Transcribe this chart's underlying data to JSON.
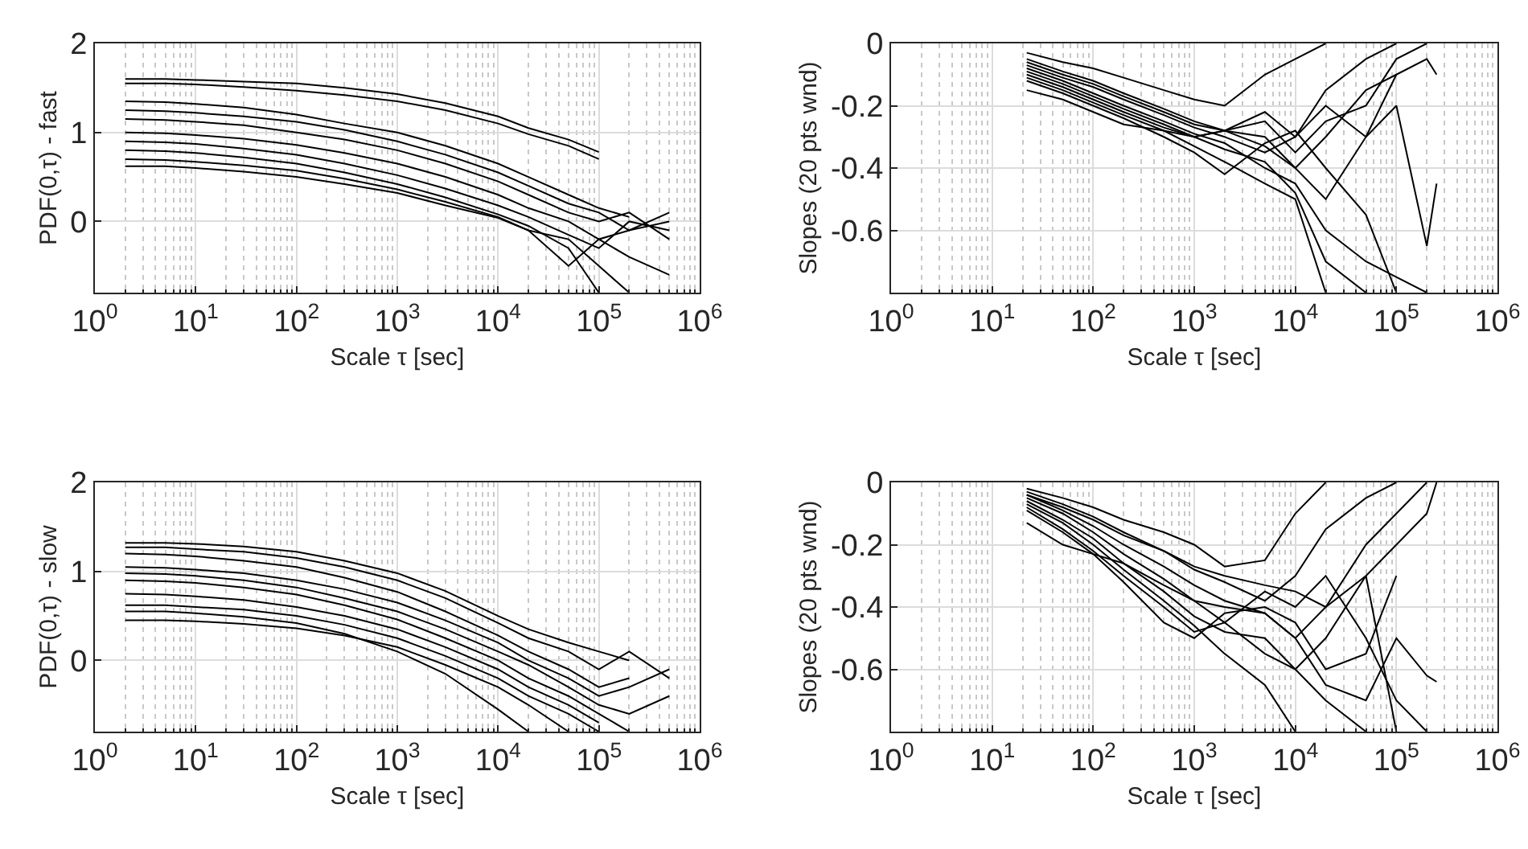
{
  "chart_data": [
    {
      "type": "line",
      "xlabel": "Scale τ [sec]",
      "ylabel": "PDF(0,τ) - fast",
      "log": "x",
      "grid": true,
      "xlim": [
        1,
        1000000
      ],
      "ylim": [
        -0.8,
        2
      ],
      "xticks": [
        {
          "value": 1,
          "label": "10$^{0}$"
        },
        {
          "value": 10,
          "label": "10$^{1}$"
        },
        {
          "value": 100,
          "label": "10$^{2}$"
        },
        {
          "value": 1000,
          "label": "10$^{3}$"
        },
        {
          "value": 10000,
          "label": "10$^{4}$"
        },
        {
          "value": 100000,
          "label": "10$^{5}$"
        },
        {
          "value": 1000000,
          "label": "10$^{6}$"
        }
      ],
      "yticks": [
        0,
        1,
        2
      ],
      "x": [
        2,
        5,
        10,
        30,
        100,
        300,
        1000,
        3000,
        10000,
        20000,
        50000,
        100000,
        200000,
        500000
      ],
      "series": [
        {
          "color": "#000000",
          "values": [
            1.6,
            1.6,
            1.59,
            1.57,
            1.55,
            1.5,
            1.43,
            1.33,
            1.18,
            1.05,
            0.92,
            0.78,
            null,
            null
          ]
        },
        {
          "color": "#000000",
          "values": [
            1.55,
            1.55,
            1.54,
            1.51,
            1.47,
            1.42,
            1.35,
            1.25,
            1.1,
            0.98,
            0.85,
            0.7,
            null,
            null
          ]
        },
        {
          "color": "#000000",
          "values": [
            1.35,
            1.34,
            1.32,
            1.28,
            1.2,
            1.1,
            1.0,
            0.85,
            0.65,
            0.5,
            0.3,
            0.15,
            0.05,
            null
          ]
        },
        {
          "color": "#000000",
          "values": [
            1.25,
            1.24,
            1.22,
            1.18,
            1.12,
            1.03,
            0.9,
            0.75,
            0.55,
            0.4,
            0.2,
            0.1,
            -0.1,
            0.0
          ]
        },
        {
          "color": "#000000",
          "values": [
            1.15,
            1.14,
            1.12,
            1.08,
            1.0,
            0.92,
            0.8,
            0.65,
            0.45,
            0.3,
            0.1,
            0.0,
            0.1,
            -0.2
          ]
        },
        {
          "color": "#000000",
          "values": [
            1.0,
            0.99,
            0.97,
            0.93,
            0.86,
            0.77,
            0.65,
            0.5,
            0.3,
            0.15,
            0.0,
            -0.2,
            -0.1,
            0.1
          ]
        },
        {
          "color": "#000000",
          "values": [
            0.9,
            0.89,
            0.87,
            0.82,
            0.75,
            0.65,
            0.52,
            0.37,
            0.18,
            0.05,
            -0.15,
            -0.3,
            0.0,
            -0.1
          ]
        },
        {
          "color": "#000000",
          "values": [
            0.8,
            0.79,
            0.77,
            0.72,
            0.65,
            0.55,
            0.42,
            0.27,
            0.08,
            -0.05,
            -0.3,
            -0.8,
            null,
            null
          ]
        },
        {
          "color": "#000000",
          "values": [
            0.7,
            0.69,
            0.67,
            0.63,
            0.57,
            0.48,
            0.36,
            0.22,
            0.05,
            -0.1,
            -0.5,
            -0.2,
            -0.4,
            -0.6
          ]
        },
        {
          "color": "#000000",
          "values": [
            0.62,
            0.62,
            0.6,
            0.56,
            0.5,
            0.42,
            0.32,
            0.18,
            0.04,
            -0.1,
            -0.2,
            -0.5,
            -0.8,
            null
          ]
        }
      ]
    },
    {
      "type": "line",
      "xlabel": "Scale τ [sec]",
      "ylabel": "Slopes (20 pts wnd)",
      "log": "x",
      "grid": true,
      "xlim": [
        1,
        1000000
      ],
      "ylim": [
        -0.8,
        0
      ],
      "xticks": [
        {
          "value": 1,
          "label": "10$^{0}$"
        },
        {
          "value": 10,
          "label": "10$^{1}$"
        },
        {
          "value": 100,
          "label": "10$^{2}$"
        },
        {
          "value": 1000,
          "label": "10$^{3}$"
        },
        {
          "value": 10000,
          "label": "10$^{4}$"
        },
        {
          "value": 100000,
          "label": "10$^{5}$"
        },
        {
          "value": 1000000,
          "label": "10$^{6}$"
        }
      ],
      "yticks": [
        -0.6,
        -0.4,
        -0.2,
        0
      ],
      "x": [
        22,
        50,
        100,
        200,
        500,
        1000,
        2000,
        5000,
        10000,
        20000,
        50000,
        100000,
        200000,
        250000
      ],
      "series": [
        {
          "color": "#000000",
          "values": [
            -0.03,
            -0.06,
            -0.08,
            -0.11,
            -0.15,
            -0.18,
            -0.2,
            -0.1,
            -0.05,
            0.0,
            null,
            null,
            null,
            null
          ]
        },
        {
          "color": "#000000",
          "values": [
            -0.05,
            -0.09,
            -0.12,
            -0.16,
            -0.21,
            -0.25,
            -0.28,
            -0.22,
            -0.3,
            -0.15,
            -0.05,
            0.0,
            null,
            null
          ]
        },
        {
          "color": "#000000",
          "values": [
            -0.07,
            -0.11,
            -0.14,
            -0.18,
            -0.23,
            -0.27,
            -0.3,
            -0.35,
            -0.3,
            -0.2,
            -0.3,
            -0.1,
            null,
            null
          ]
        },
        {
          "color": "#000000",
          "values": [
            -0.08,
            -0.12,
            -0.16,
            -0.2,
            -0.25,
            -0.29,
            -0.32,
            -0.4,
            -0.45,
            -0.6,
            -0.7,
            -0.75,
            -0.8,
            null
          ]
        },
        {
          "color": "#000000",
          "values": [
            -0.1,
            -0.14,
            -0.18,
            -0.22,
            -0.27,
            -0.3,
            -0.28,
            -0.25,
            -0.35,
            -0.25,
            -0.2,
            -0.05,
            0.0,
            null
          ]
        },
        {
          "color": "#000000",
          "values": [
            -0.11,
            -0.15,
            -0.19,
            -0.23,
            -0.28,
            -0.33,
            -0.38,
            -0.45,
            -0.5,
            -0.8,
            null,
            null,
            null,
            null
          ]
        },
        {
          "color": "#000000",
          "values": [
            -0.12,
            -0.16,
            -0.2,
            -0.24,
            -0.3,
            -0.35,
            -0.42,
            -0.32,
            -0.28,
            -0.4,
            -0.55,
            -0.8,
            null,
            null
          ]
        },
        {
          "color": "#000000",
          "values": [
            -0.15,
            -0.18,
            -0.22,
            -0.26,
            -0.28,
            -0.3,
            -0.28,
            -0.3,
            -0.4,
            -0.3,
            -0.15,
            -0.1,
            -0.05,
            -0.1
          ]
        },
        {
          "color": "#000000",
          "values": [
            -0.06,
            -0.1,
            -0.13,
            -0.17,
            -0.22,
            -0.26,
            -0.28,
            -0.33,
            -0.4,
            -0.5,
            -0.3,
            -0.2,
            -0.65,
            -0.45
          ]
        },
        {
          "color": "#000000",
          "values": [
            -0.09,
            -0.13,
            -0.17,
            -0.21,
            -0.26,
            -0.3,
            -0.34,
            -0.38,
            -0.48,
            -0.7,
            -0.8,
            null,
            null,
            null
          ]
        }
      ]
    },
    {
      "type": "line",
      "xlabel": "Scale τ [sec]",
      "ylabel": "PDF(0,τ) - slow",
      "log": "x",
      "grid": true,
      "xlim": [
        1,
        1000000
      ],
      "ylim": [
        -0.8,
        2
      ],
      "xticks": [
        {
          "value": 1,
          "label": "10$^{0}$"
        },
        {
          "value": 10,
          "label": "10$^{1}$"
        },
        {
          "value": 100,
          "label": "10$^{2}$"
        },
        {
          "value": 1000,
          "label": "10$^{3}$"
        },
        {
          "value": 10000,
          "label": "10$^{4}$"
        },
        {
          "value": 100000,
          "label": "10$^{5}$"
        },
        {
          "value": 1000000,
          "label": "10$^{6}$"
        }
      ],
      "yticks": [
        0,
        1,
        2
      ],
      "x": [
        2,
        5,
        10,
        30,
        100,
        300,
        1000,
        3000,
        10000,
        20000,
        50000,
        100000,
        200000,
        500000
      ],
      "series": [
        {
          "color": "#000000",
          "values": [
            1.32,
            1.32,
            1.31,
            1.28,
            1.22,
            1.12,
            0.98,
            0.78,
            0.5,
            0.35,
            0.2,
            0.1,
            0.0,
            null
          ]
        },
        {
          "color": "#000000",
          "values": [
            1.27,
            1.27,
            1.25,
            1.22,
            1.15,
            1.05,
            0.9,
            0.7,
            0.42,
            0.25,
            0.1,
            -0.1,
            0.1,
            -0.2
          ]
        },
        {
          "color": "#000000",
          "values": [
            1.2,
            1.19,
            1.17,
            1.12,
            1.05,
            0.93,
            0.77,
            0.55,
            0.28,
            0.1,
            -0.1,
            -0.3,
            -0.2,
            null
          ]
        },
        {
          "color": "#000000",
          "values": [
            1.05,
            1.04,
            1.02,
            0.98,
            0.9,
            0.8,
            0.65,
            0.45,
            0.2,
            0.0,
            -0.2,
            -0.4,
            -0.3,
            -0.1
          ]
        },
        {
          "color": "#000000",
          "values": [
            0.98,
            0.97,
            0.95,
            0.9,
            0.82,
            0.7,
            0.55,
            0.35,
            0.1,
            -0.05,
            -0.3,
            -0.5,
            -0.6,
            -0.4
          ]
        },
        {
          "color": "#000000",
          "values": [
            0.9,
            0.89,
            0.87,
            0.82,
            0.74,
            0.62,
            0.46,
            0.25,
            0.0,
            -0.2,
            -0.4,
            -0.6,
            -0.8,
            null
          ]
        },
        {
          "color": "#000000",
          "values": [
            0.75,
            0.74,
            0.72,
            0.68,
            0.6,
            0.5,
            0.35,
            0.15,
            -0.1,
            -0.3,
            -0.5,
            -0.7,
            null,
            null
          ]
        },
        {
          "color": "#000000",
          "values": [
            0.62,
            0.62,
            0.6,
            0.57,
            0.5,
            0.4,
            0.25,
            0.05,
            -0.2,
            -0.4,
            -0.6,
            -0.8,
            null,
            null
          ]
        },
        {
          "color": "#000000",
          "values": [
            0.55,
            0.55,
            0.53,
            0.49,
            0.42,
            0.3,
            0.1,
            -0.15,
            -0.55,
            -0.8,
            null,
            null,
            null,
            null
          ]
        },
        {
          "color": "#000000",
          "values": [
            0.45,
            0.45,
            0.44,
            0.41,
            0.36,
            0.28,
            0.15,
            -0.05,
            -0.3,
            -0.5,
            -0.8,
            null,
            null,
            null
          ]
        }
      ]
    },
    {
      "type": "line",
      "xlabel": "Scale τ [sec]",
      "ylabel": "Slopes (20 pts wnd)",
      "log": "x",
      "grid": true,
      "xlim": [
        1,
        1000000
      ],
      "ylim": [
        -0.8,
        0
      ],
      "xticks": [
        {
          "value": 1,
          "label": "10$^{0}$"
        },
        {
          "value": 10,
          "label": "10$^{1}$"
        },
        {
          "value": 100,
          "label": "10$^{2}$"
        },
        {
          "value": 1000,
          "label": "10$^{3}$"
        },
        {
          "value": 10000,
          "label": "10$^{4}$"
        },
        {
          "value": 100000,
          "label": "10$^{5}$"
        },
        {
          "value": 1000000,
          "label": "10$^{6}$"
        }
      ],
      "yticks": [
        -0.6,
        -0.4,
        -0.2,
        0
      ],
      "x": [
        22,
        50,
        100,
        200,
        500,
        1000,
        2000,
        5000,
        10000,
        20000,
        50000,
        100000,
        200000,
        250000
      ],
      "series": [
        {
          "color": "#000000",
          "values": [
            -0.02,
            -0.05,
            -0.08,
            -0.12,
            -0.16,
            -0.2,
            -0.27,
            -0.25,
            -0.1,
            0.0,
            null,
            null,
            null,
            null
          ]
        },
        {
          "color": "#000000",
          "values": [
            -0.03,
            -0.07,
            -0.11,
            -0.16,
            -0.22,
            -0.28,
            -0.32,
            -0.38,
            -0.3,
            -0.15,
            -0.05,
            0.0,
            null,
            null
          ]
        },
        {
          "color": "#000000",
          "values": [
            -0.04,
            -0.09,
            -0.14,
            -0.2,
            -0.27,
            -0.33,
            -0.38,
            -0.42,
            -0.5,
            -0.4,
            -0.2,
            -0.1,
            0.0,
            null
          ]
        },
        {
          "color": "#000000",
          "values": [
            -0.05,
            -0.1,
            -0.16,
            -0.23,
            -0.31,
            -0.38,
            -0.45,
            -0.55,
            -0.6,
            -0.5,
            -0.3,
            -0.8,
            null,
            null
          ]
        },
        {
          "color": "#000000",
          "values": [
            -0.06,
            -0.12,
            -0.18,
            -0.26,
            -0.35,
            -0.43,
            -0.48,
            -0.5,
            -0.6,
            -0.7,
            -0.8,
            null,
            null,
            null
          ]
        },
        {
          "color": "#000000",
          "values": [
            -0.07,
            -0.13,
            -0.2,
            -0.28,
            -0.38,
            -0.46,
            -0.55,
            -0.65,
            -0.8,
            null,
            null,
            null,
            null,
            null
          ]
        },
        {
          "color": "#000000",
          "values": [
            -0.08,
            -0.15,
            -0.22,
            -0.3,
            -0.4,
            -0.48,
            -0.45,
            -0.35,
            -0.4,
            -0.3,
            -0.5,
            -0.7,
            -0.8,
            null
          ]
        },
        {
          "color": "#000000",
          "values": [
            -0.09,
            -0.16,
            -0.23,
            -0.32,
            -0.45,
            -0.5,
            -0.42,
            -0.4,
            -0.45,
            -0.6,
            -0.55,
            -0.3,
            null,
            null
          ]
        },
        {
          "color": "#000000",
          "values": [
            -0.13,
            -0.2,
            -0.23,
            -0.26,
            -0.33,
            -0.38,
            -0.4,
            -0.42,
            -0.5,
            -0.65,
            -0.7,
            -0.5,
            -0.62,
            -0.64
          ]
        },
        {
          "color": "#000000",
          "values": [
            -0.04,
            -0.08,
            -0.12,
            -0.17,
            -0.22,
            -0.27,
            -0.3,
            -0.33,
            -0.35,
            -0.4,
            -0.3,
            -0.2,
            -0.1,
            0.0
          ]
        }
      ]
    }
  ]
}
